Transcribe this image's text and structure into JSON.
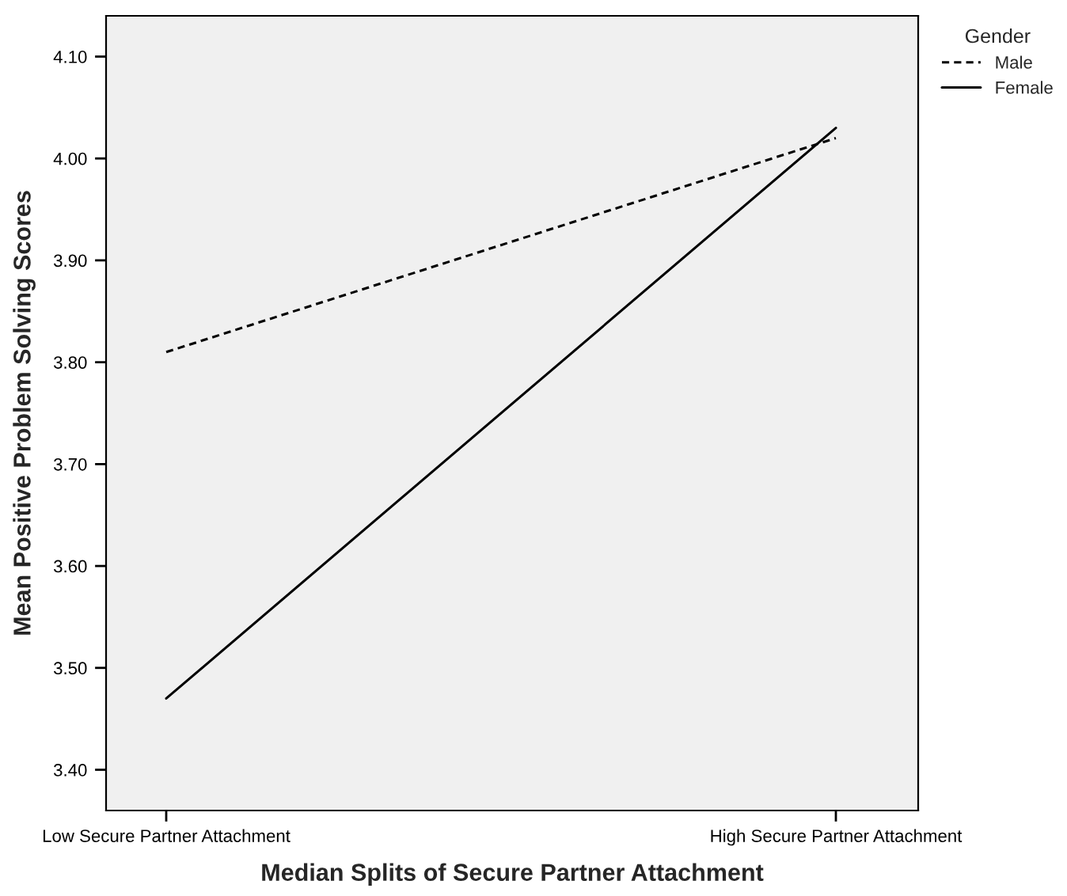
{
  "chart_data": {
    "type": "line",
    "xlabel": "Median Splits of Secure Partner Attachment",
    "ylabel": "Mean Positive Problem Solving Scores",
    "legend_title": "Gender",
    "categories": [
      "Low Secure Partner Attachment",
      "High Secure Partner Attachment"
    ],
    "series": [
      {
        "name": "Male",
        "color": "#000000",
        "values": [
          3.81,
          4.02
        ],
        "line_style": "dashed"
      },
      {
        "name": "Female",
        "color": "#000000",
        "values": [
          3.47,
          4.03
        ],
        "line_style": "solid"
      }
    ],
    "ylim": [
      3.36,
      4.14
    ],
    "yticks": [
      {
        "value": 3.4,
        "label": "3.40"
      },
      {
        "value": 3.5,
        "label": "3.50"
      },
      {
        "value": 3.6,
        "label": "3.60"
      },
      {
        "value": 3.7,
        "label": "3.70"
      },
      {
        "value": 3.8,
        "label": "3.80"
      },
      {
        "value": 3.9,
        "label": "3.90"
      },
      {
        "value": 4.0,
        "label": "4.00"
      },
      {
        "value": 4.1,
        "label": "4.10"
      }
    ],
    "grid": false,
    "legend": "top right",
    "marker": "none"
  }
}
